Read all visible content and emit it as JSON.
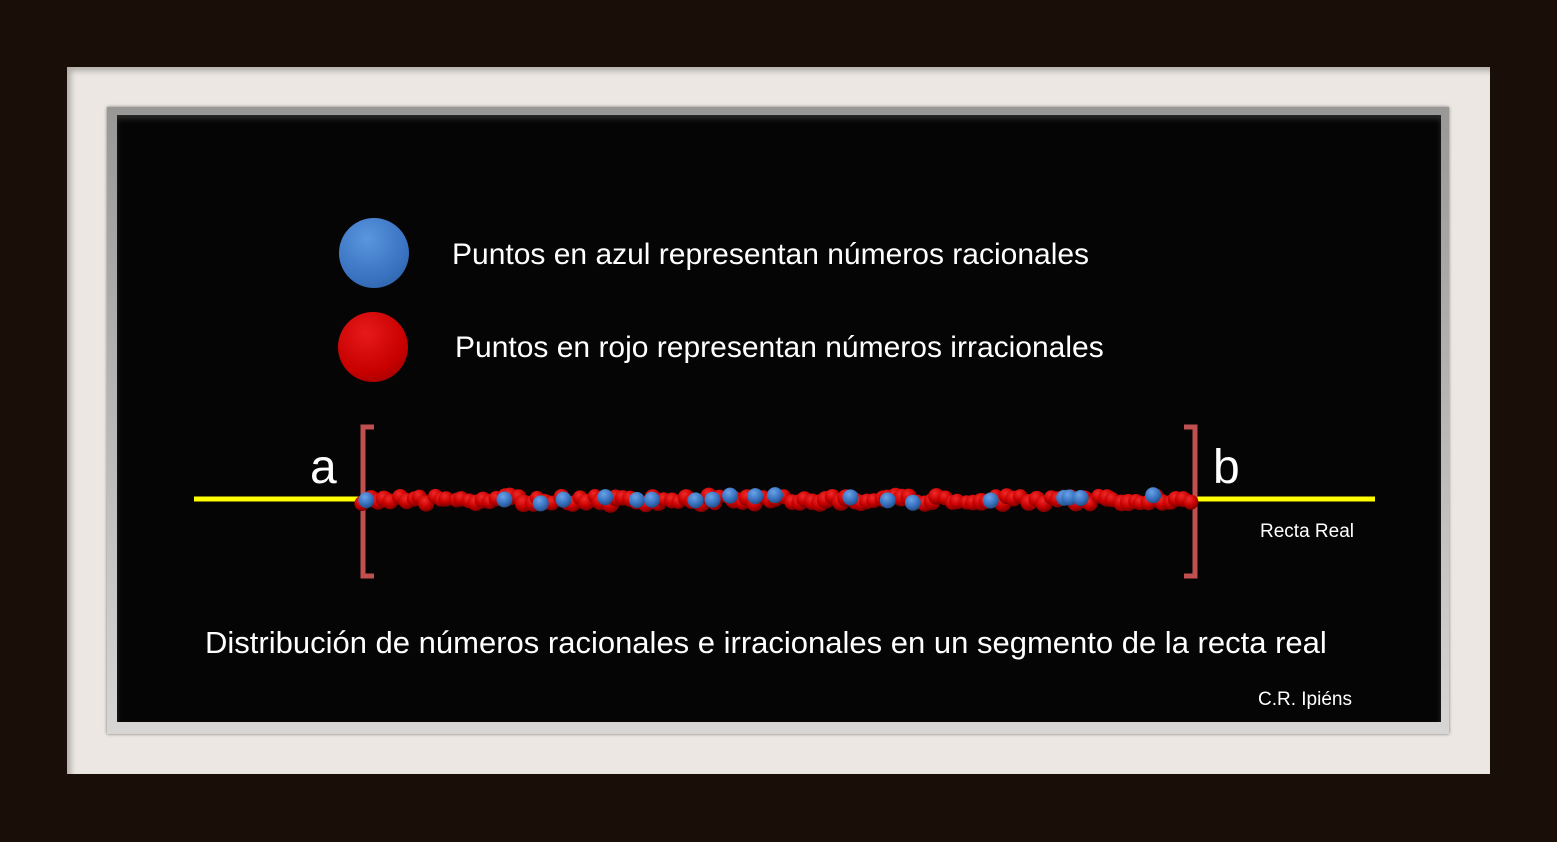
{
  "legend": [
    {
      "label": "Puntos en azul representan números racionales",
      "color": "#3a78c8"
    },
    {
      "label": "Puntos en rojo representan números irracionales",
      "color": "#cc0000"
    }
  ],
  "segment": {
    "left_label": "a",
    "right_label": "b",
    "line_label": "Recta Real",
    "line_color": "#ffff00",
    "bracket_color": "#c05050"
  },
  "caption": "Distribución de números racionales e irracionales en un segmento de la recta real",
  "author": "C.R. Ipiéns"
}
